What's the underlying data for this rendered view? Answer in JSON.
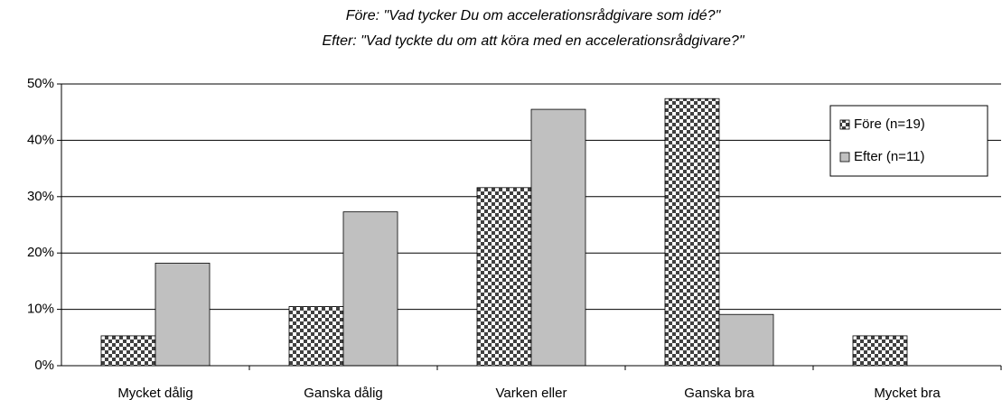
{
  "chart_data": {
    "type": "bar",
    "title": [
      "Före: \"Vad tycker Du om accelerationsrådgivare som idé?\"",
      "Efter: \"Vad tyckte du om att köra med en accelerationsrådgivare?\""
    ],
    "categories": [
      "Mycket dålig",
      "Ganska dålig",
      "Varken eller",
      "Ganska bra",
      "Mycket bra"
    ],
    "series": [
      {
        "name": "Före (n=19)",
        "color": "#404040",
        "pattern": "checkered",
        "values": [
          5.3,
          10.5,
          31.6,
          47.4,
          5.3
        ]
      },
      {
        "name": "Efter (n=11)",
        "color": "#c0c0c0",
        "values": [
          18.2,
          27.3,
          45.5,
          9.1,
          0
        ]
      }
    ],
    "ylim": [
      0,
      50
    ],
    "yticks": [
      {
        "value": 0,
        "label": "0%"
      },
      {
        "value": 10,
        "label": "10%"
      },
      {
        "value": 20,
        "label": "20%"
      },
      {
        "value": 30,
        "label": "30%"
      },
      {
        "value": 40,
        "label": "40%"
      },
      {
        "value": 50,
        "label": "50%"
      }
    ],
    "grid": true,
    "legend": "upper right"
  }
}
